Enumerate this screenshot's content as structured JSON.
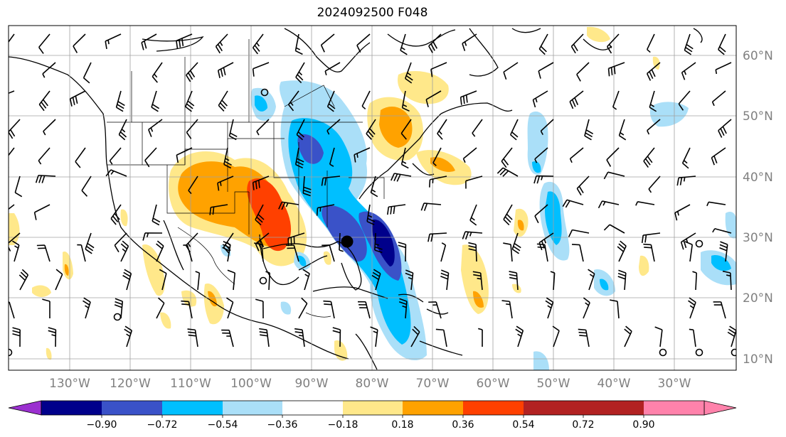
{
  "title": "2024092500 F048",
  "longitude_labels": [
    "130°W",
    "120°W",
    "110°W",
    "100°W",
    "90°W",
    "80°W",
    "70°W",
    "60°W",
    "50°W",
    "40°W",
    "30°W"
  ],
  "latitude_labels": [
    "60°N",
    "50°N",
    "40°N",
    "30°N",
    "20°N",
    "10°N"
  ],
  "colorbar": {
    "tick_labels": [
      "−0.90",
      "−0.72",
      "−0.54",
      "−0.36",
      "−0.18",
      "0.18",
      "0.36",
      "0.54",
      "0.72",
      "0.90"
    ],
    "colors": [
      "#9b30d0",
      "#00008b",
      "#3a52c8",
      "#00bfff",
      "#aadff8",
      "#ffffff",
      "#ffe88a",
      "#ffa200",
      "#ff4000",
      "#b22222",
      "#ff82ab"
    ]
  },
  "colors": {
    "land_outline": "#000000",
    "grid": "#a0a0a0",
    "station_marker": "#000000"
  }
}
